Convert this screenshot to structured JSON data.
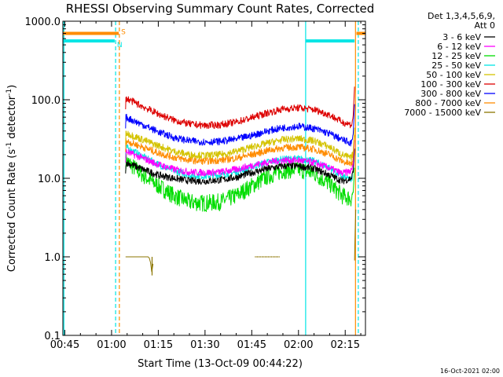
{
  "chart_data": {
    "type": "line",
    "title": "RHESSI Observing Summary Count Rates, Corrected",
    "xlabel": "Start Time (13-Oct-09 00:44:22)",
    "ylabel_main": "Corrected Count Rate (s",
    "ylabel_exp1": "-1",
    "ylabel_mid": " detector",
    "ylabel_exp2": "-1",
    "ylabel_end": ")",
    "yscale": "log",
    "ylim": [
      0.1,
      1000
    ],
    "xlim_minutes": [
      44.37,
      141.5
    ],
    "x_ticks": [
      {
        "label": "00:45",
        "minute": 45
      },
      {
        "label": "01:00",
        "minute": 60
      },
      {
        "label": "01:15",
        "minute": 75
      },
      {
        "label": "01:30",
        "minute": 90
      },
      {
        "label": "01:45",
        "minute": 105
      },
      {
        "label": "02:00",
        "minute": 120
      },
      {
        "label": "02:15",
        "minute": 135
      }
    ],
    "y_ticks": [
      {
        "label": "0.1",
        "value": 0.1
      },
      {
        "label": "1.0",
        "value": 1
      },
      {
        "label": "10.0",
        "value": 10
      },
      {
        "label": "100.0",
        "value": 100
      },
      {
        "label": "1000.0",
        "value": 1000
      }
    ],
    "legend": {
      "position": "right",
      "header": [
        "Det 1,3,4,5,6,9,",
        "Att 0"
      ],
      "entries": [
        {
          "label": "3 - 6 keV",
          "color": "#000000"
        },
        {
          "label": "6 - 12 keV",
          "color": "#ff00ff"
        },
        {
          "label": "12 - 25 keV",
          "color": "#00dd00"
        },
        {
          "label": "25 - 50 keV",
          "color": "#00e5e5"
        },
        {
          "label": "50 - 100 keV",
          "color": "#d4c300"
        },
        {
          "label": "100 - 300 keV",
          "color": "#dd0000"
        },
        {
          "label": "300 - 800 keV",
          "color": "#0000ff"
        },
        {
          "label": "800 - 7000 keV",
          "color": "#ff8c00"
        },
        {
          "label": "7000 - 15000 keV",
          "color": "#8b7500"
        }
      ]
    },
    "series": [
      {
        "name": "3 - 6 keV",
        "color": "#000000",
        "x": [
          64.5,
          70,
          75,
          80,
          85,
          90,
          95,
          100,
          105,
          110,
          115,
          120,
          125,
          130,
          134,
          137,
          138
        ],
        "y": [
          16,
          13,
          11,
          10,
          9.3,
          9.2,
          9.5,
          10.3,
          11.8,
          13.2,
          14.3,
          14.3,
          13.3,
          11,
          9.2,
          10,
          14
        ]
      },
      {
        "name": "6 - 12 keV",
        "color": "#ff00ff",
        "x": [
          64.5,
          70,
          75,
          80,
          85,
          90,
          95,
          100,
          105,
          110,
          115,
          120,
          125,
          130,
          134,
          137,
          138
        ],
        "y": [
          22,
          18,
          15,
          13,
          12,
          11.8,
          12,
          13,
          14.5,
          16,
          17,
          17,
          15.8,
          13.5,
          11.5,
          12.5,
          18
        ]
      },
      {
        "name": "12 - 25 keV",
        "color": "#00dd00",
        "x": [
          64.5,
          70,
          75,
          80,
          85,
          90,
          95,
          100,
          105,
          110,
          115,
          120,
          125,
          130,
          134,
          137,
          138
        ],
        "y": [
          17,
          11,
          8,
          6,
          5,
          4.8,
          5,
          6,
          8,
          10.5,
          12.5,
          13,
          11.5,
          8.5,
          6,
          5.5,
          8
        ]
      },
      {
        "name": "25 - 50 keV",
        "color": "#00e5e5",
        "x": [
          64.5,
          70,
          75,
          80,
          85,
          90,
          95,
          100,
          105,
          110,
          115,
          120,
          125,
          130,
          134,
          137,
          138
        ],
        "y": [
          25,
          19,
          15,
          12.5,
          11,
          10.7,
          11,
          12,
          14,
          16,
          17.5,
          17.8,
          16.5,
          13.5,
          10.5,
          9.5,
          14
        ]
      },
      {
        "name": "50 - 100 keV",
        "color": "#d4c300",
        "x": [
          64.5,
          70,
          75,
          80,
          85,
          90,
          95,
          100,
          105,
          110,
          115,
          120,
          125,
          130,
          134,
          137,
          138
        ],
        "y": [
          38,
          31,
          26,
          22,
          20,
          19.5,
          20,
          22,
          25,
          28,
          31,
          32,
          30,
          25,
          20,
          18,
          26
        ]
      },
      {
        "name": "100 - 300 keV",
        "color": "#dd0000",
        "x": [
          64.5,
          70,
          75,
          80,
          85,
          90,
          95,
          100,
          105,
          110,
          115,
          120,
          125,
          130,
          134,
          137,
          138
        ],
        "y": [
          105,
          82,
          66,
          55,
          49,
          47,
          48,
          52,
          59,
          68,
          76,
          79,
          75,
          64,
          52,
          48,
          70
        ]
      },
      {
        "name": "300 - 800 keV",
        "color": "#0000ff",
        "x": [
          64.5,
          70,
          75,
          80,
          85,
          90,
          95,
          100,
          105,
          110,
          115,
          120,
          125,
          130,
          134,
          137,
          138
        ],
        "y": [
          60,
          48,
          39,
          33,
          30,
          29,
          29.5,
          31.5,
          35,
          40,
          44,
          46,
          43,
          37,
          31,
          28,
          40
        ]
      },
      {
        "name": "800 - 7000 keV",
        "color": "#ff8c00",
        "x": [
          64.5,
          70,
          75,
          80,
          85,
          90,
          95,
          100,
          105,
          110,
          115,
          120,
          125,
          130,
          134,
          137,
          138
        ],
        "y": [
          30,
          25,
          21,
          18.5,
          17,
          16.5,
          17,
          18,
          20,
          22.5,
          24.5,
          25,
          23.5,
          20,
          16.5,
          15,
          21
        ]
      },
      {
        "name": "7000 - 15000 keV",
        "color": "#8b7500",
        "x": [
          64.5,
          72,
          72.5,
          73,
          73.5,
          106,
          107,
          110,
          114
        ],
        "y": [
          1.0,
          1.0,
          0.85,
          0.6,
          1.0,
          1.0,
          1.0,
          1.0,
          1.0
        ]
      }
    ],
    "markers": {
      "orange": {
        "color": "#ff8c00",
        "bar_value": 700,
        "label": "S",
        "segments": [
          [
            44.37,
            62.3
          ],
          [
            138.6,
            141.5
          ]
        ],
        "vlines": [
          62.5,
          138.3
        ]
      },
      "cyan": {
        "color": "#00e5e5",
        "bar_value": 560,
        "label": "N",
        "segments": [
          [
            44.37,
            61.0
          ],
          [
            122.3,
            138.0
          ]
        ],
        "vlines": [
          44.7,
          61.3,
          122.3,
          139.2
        ]
      }
    }
  },
  "footer": {
    "timestamp": "16-Oct-2021 02:00"
  }
}
